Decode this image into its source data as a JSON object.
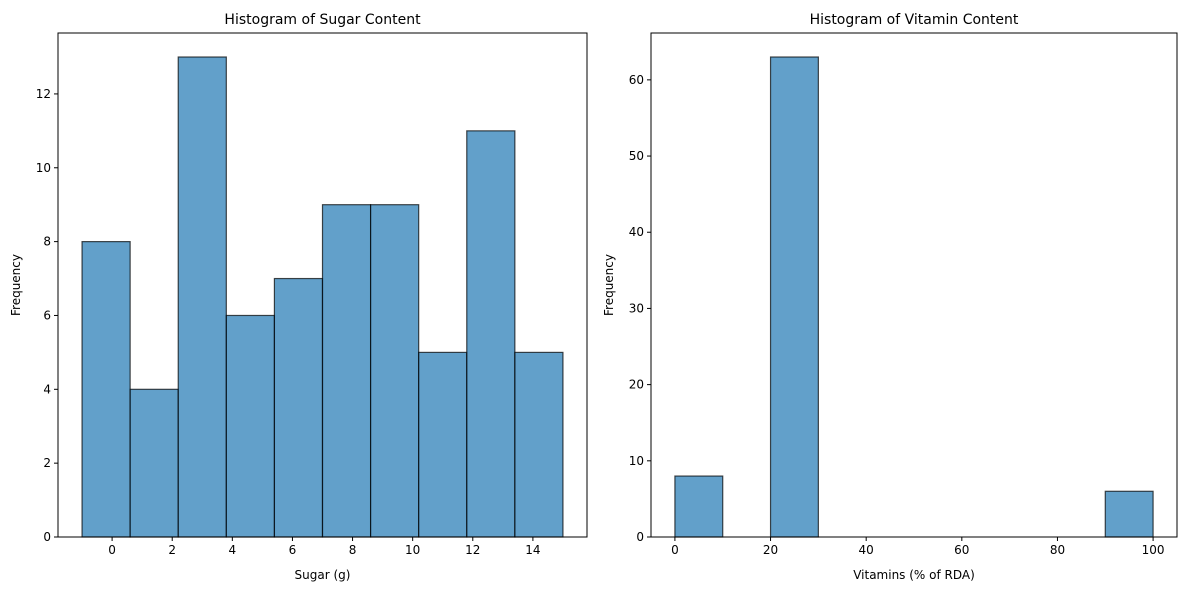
{
  "chart_data": [
    {
      "type": "bar",
      "title": "Histogram of Sugar Content",
      "xlabel": "Sugar (g)",
      "ylabel": "Frequency",
      "bin_edges": [
        -1,
        0.6,
        2.2,
        3.8,
        5.4,
        7.0,
        8.6,
        10.2,
        11.8,
        13.4,
        15
      ],
      "values": [
        8,
        4,
        13,
        6,
        7,
        9,
        9,
        5,
        11,
        5
      ],
      "xlim": [
        -1.8,
        15.8
      ],
      "ylim": [
        0,
        13.65
      ],
      "xticks": [
        0,
        2,
        4,
        6,
        8,
        10,
        12,
        14
      ],
      "xtick_labels": [
        "0",
        "2",
        "4",
        "6",
        "8",
        "10",
        "12",
        "14"
      ],
      "yticks": [
        0,
        2,
        4,
        6,
        8,
        10,
        12
      ],
      "ytick_labels": [
        "0",
        "2",
        "4",
        "6",
        "8",
        "10",
        "12"
      ],
      "grid": false,
      "bar_color": "#1f77b4",
      "edge_color": "#000000"
    },
    {
      "type": "bar",
      "title": "Histogram of Vitamin Content",
      "xlabel": "Vitamins (% of RDA)",
      "ylabel": "Frequency",
      "bin_edges": [
        0,
        10,
        20,
        30,
        40,
        50,
        60,
        70,
        80,
        90,
        100
      ],
      "values": [
        8,
        0,
        63,
        0,
        0,
        0,
        0,
        0,
        0,
        6
      ],
      "xlim": [
        -5,
        105
      ],
      "ylim": [
        0,
        66.15
      ],
      "xticks": [
        0,
        20,
        40,
        60,
        80,
        100
      ],
      "xtick_labels": [
        "0",
        "20",
        "40",
        "60",
        "80",
        "100"
      ],
      "yticks": [
        0,
        10,
        20,
        30,
        40,
        50,
        60
      ],
      "ytick_labels": [
        "0",
        "10",
        "20",
        "30",
        "40",
        "50",
        "60"
      ],
      "grid": false,
      "bar_color": "#1f77b4",
      "edge_color": "#000000"
    }
  ]
}
